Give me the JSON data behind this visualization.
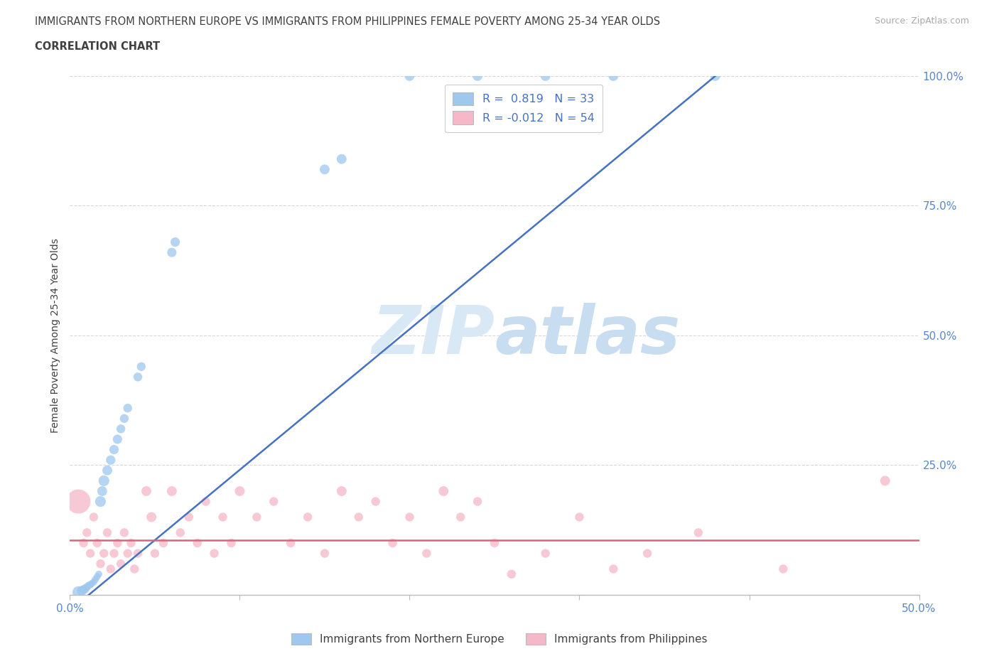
{
  "title_line1": "IMMIGRANTS FROM NORTHERN EUROPE VS IMMIGRANTS FROM PHILIPPINES FEMALE POVERTY AMONG 25-34 YEAR OLDS",
  "title_line2": "CORRELATION CHART",
  "source_text": "Source: ZipAtlas.com",
  "ylabel": "Female Poverty Among 25-34 Year Olds",
  "xlim": [
    0.0,
    0.5
  ],
  "ylim": [
    0.0,
    1.0
  ],
  "xticks": [
    0.0,
    0.1,
    0.2,
    0.3,
    0.4,
    0.5
  ],
  "yticks": [
    0.0,
    0.25,
    0.5,
    0.75,
    1.0
  ],
  "xticklabels": [
    "0.0%",
    "",
    "",
    "",
    "",
    "50.0%"
  ],
  "yticklabels_right": [
    "",
    "25.0%",
    "50.0%",
    "75.0%",
    "100.0%"
  ],
  "blue_R": 0.819,
  "blue_N": 33,
  "pink_R": -0.012,
  "pink_N": 54,
  "blue_color": "#9ec8ee",
  "pink_color": "#f4b8c8",
  "blue_line_color": "#4472c4",
  "pink_line_color": "#d9667a",
  "watermark_color": "#d0dff0",
  "grid_color": "#d8d8d8",
  "bg_color": "#ffffff",
  "tick_color": "#5588cc",
  "axis_color": "#bbbbbb",
  "blue_scatter": [
    [
      0.005,
      0.005
    ],
    [
      0.007,
      0.008
    ],
    [
      0.008,
      0.01
    ],
    [
      0.009,
      0.012
    ],
    [
      0.01,
      0.015
    ],
    [
      0.011,
      0.018
    ],
    [
      0.012,
      0.02
    ],
    [
      0.013,
      0.022
    ],
    [
      0.014,
      0.025
    ],
    [
      0.015,
      0.03
    ],
    [
      0.016,
      0.035
    ],
    [
      0.017,
      0.04
    ],
    [
      0.018,
      0.18
    ],
    [
      0.019,
      0.2
    ],
    [
      0.02,
      0.22
    ],
    [
      0.022,
      0.24
    ],
    [
      0.024,
      0.26
    ],
    [
      0.026,
      0.28
    ],
    [
      0.028,
      0.3
    ],
    [
      0.03,
      0.32
    ],
    [
      0.032,
      0.34
    ],
    [
      0.034,
      0.36
    ],
    [
      0.04,
      0.42
    ],
    [
      0.042,
      0.44
    ],
    [
      0.06,
      0.66
    ],
    [
      0.062,
      0.68
    ],
    [
      0.15,
      0.82
    ],
    [
      0.16,
      0.84
    ],
    [
      0.2,
      1.0
    ],
    [
      0.24,
      1.0
    ],
    [
      0.28,
      1.0
    ],
    [
      0.32,
      1.0
    ],
    [
      0.38,
      1.0
    ]
  ],
  "pink_scatter": [
    [
      0.005,
      0.18
    ],
    [
      0.008,
      0.1
    ],
    [
      0.01,
      0.12
    ],
    [
      0.012,
      0.08
    ],
    [
      0.014,
      0.15
    ],
    [
      0.016,
      0.1
    ],
    [
      0.018,
      0.06
    ],
    [
      0.02,
      0.08
    ],
    [
      0.022,
      0.12
    ],
    [
      0.024,
      0.05
    ],
    [
      0.026,
      0.08
    ],
    [
      0.028,
      0.1
    ],
    [
      0.03,
      0.06
    ],
    [
      0.032,
      0.12
    ],
    [
      0.034,
      0.08
    ],
    [
      0.036,
      0.1
    ],
    [
      0.038,
      0.05
    ],
    [
      0.04,
      0.08
    ],
    [
      0.045,
      0.2
    ],
    [
      0.048,
      0.15
    ],
    [
      0.05,
      0.08
    ],
    [
      0.055,
      0.1
    ],
    [
      0.06,
      0.2
    ],
    [
      0.065,
      0.12
    ],
    [
      0.07,
      0.15
    ],
    [
      0.075,
      0.1
    ],
    [
      0.08,
      0.18
    ],
    [
      0.085,
      0.08
    ],
    [
      0.09,
      0.15
    ],
    [
      0.095,
      0.1
    ],
    [
      0.1,
      0.2
    ],
    [
      0.11,
      0.15
    ],
    [
      0.12,
      0.18
    ],
    [
      0.13,
      0.1
    ],
    [
      0.14,
      0.15
    ],
    [
      0.15,
      0.08
    ],
    [
      0.16,
      0.2
    ],
    [
      0.17,
      0.15
    ],
    [
      0.18,
      0.18
    ],
    [
      0.19,
      0.1
    ],
    [
      0.2,
      0.15
    ],
    [
      0.21,
      0.08
    ],
    [
      0.22,
      0.2
    ],
    [
      0.23,
      0.15
    ],
    [
      0.24,
      0.18
    ],
    [
      0.25,
      0.1
    ],
    [
      0.26,
      0.04
    ],
    [
      0.28,
      0.08
    ],
    [
      0.3,
      0.15
    ],
    [
      0.32,
      0.05
    ],
    [
      0.34,
      0.08
    ],
    [
      0.37,
      0.12
    ],
    [
      0.42,
      0.05
    ],
    [
      0.48,
      0.22
    ]
  ],
  "blue_sizes": [
    150,
    100,
    80,
    80,
    60,
    60,
    50,
    50,
    50,
    50,
    50,
    50,
    120,
    100,
    120,
    100,
    90,
    90,
    90,
    80,
    80,
    80,
    80,
    80,
    90,
    90,
    100,
    100,
    100,
    100,
    100,
    100,
    100
  ],
  "pink_sizes": [
    600,
    80,
    80,
    80,
    80,
    80,
    80,
    80,
    80,
    80,
    80,
    80,
    80,
    80,
    80,
    80,
    80,
    80,
    100,
    100,
    80,
    80,
    100,
    80,
    80,
    80,
    80,
    80,
    80,
    80,
    100,
    80,
    80,
    80,
    80,
    80,
    100,
    80,
    80,
    80,
    80,
    80,
    100,
    80,
    80,
    80,
    80,
    80,
    80,
    80,
    80,
    80,
    80,
    100
  ],
  "blue_line_x": [
    0.0,
    0.38
  ],
  "blue_line_y": [
    -0.03,
    1.0
  ],
  "pink_line_x": [
    0.0,
    0.5
  ],
  "pink_line_y": [
    0.105,
    0.105
  ]
}
